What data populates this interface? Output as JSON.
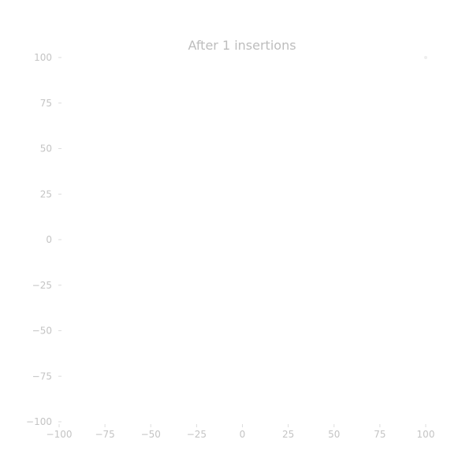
{
  "chart_data": {
    "type": "scatter",
    "title": "After 1 insertions",
    "xlabel": "",
    "ylabel": "",
    "xlim": [
      -100,
      100
    ],
    "ylim": [
      -100,
      100
    ],
    "xticks": [
      -100,
      -75,
      -50,
      -25,
      0,
      25,
      50,
      75,
      100
    ],
    "yticks": [
      -100,
      -75,
      -50,
      -25,
      0,
      25,
      50,
      75,
      100
    ],
    "x_tick_labels": [
      "−100",
      "−75",
      "−50",
      "−25",
      "0",
      "25",
      "50",
      "75",
      "100"
    ],
    "y_tick_labels": [
      "−100",
      "−75",
      "−50",
      "−25",
      "0",
      "25",
      "50",
      "75",
      "100"
    ],
    "grid": false,
    "series": [
      {
        "points": [
          {
            "x": 100,
            "y": 100
          }
        ],
        "color": "#eeeeee"
      }
    ]
  }
}
